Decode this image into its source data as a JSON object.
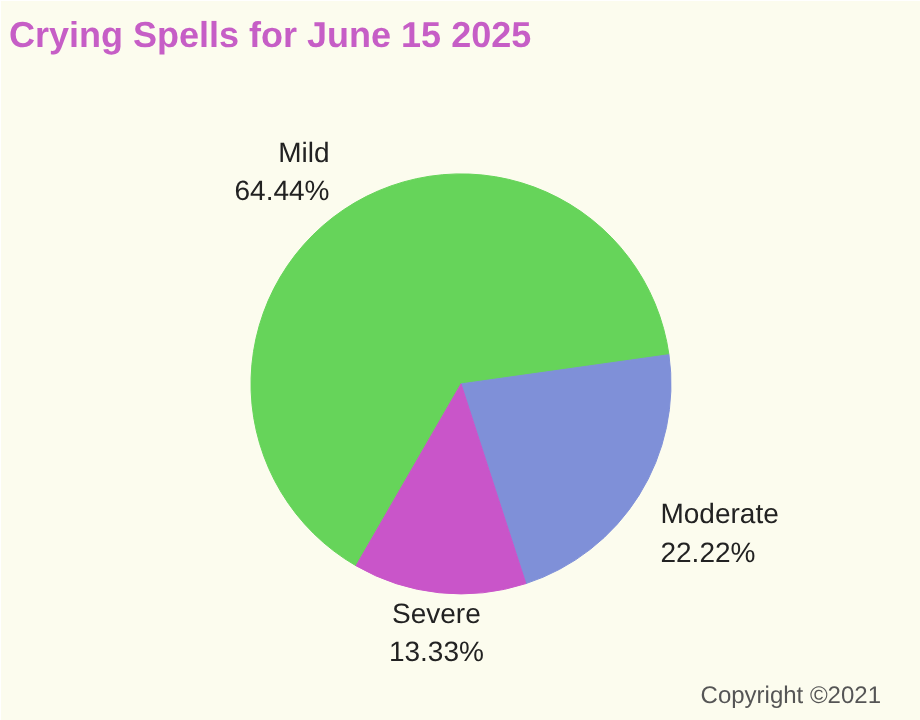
{
  "chart_data": {
    "type": "pie",
    "title": "Crying Spells for June 15 2025",
    "categories": [
      "Mild",
      "Moderate",
      "Severe"
    ],
    "values": [
      64.44,
      22.22,
      13.33
    ],
    "value_labels": [
      "64.44%",
      "22.22%",
      "13.33%"
    ],
    "colors": [
      "#66d45a",
      "#7f90d8",
      "#c955c9"
    ],
    "annotations": [
      "Copyright ©2021"
    ]
  }
}
